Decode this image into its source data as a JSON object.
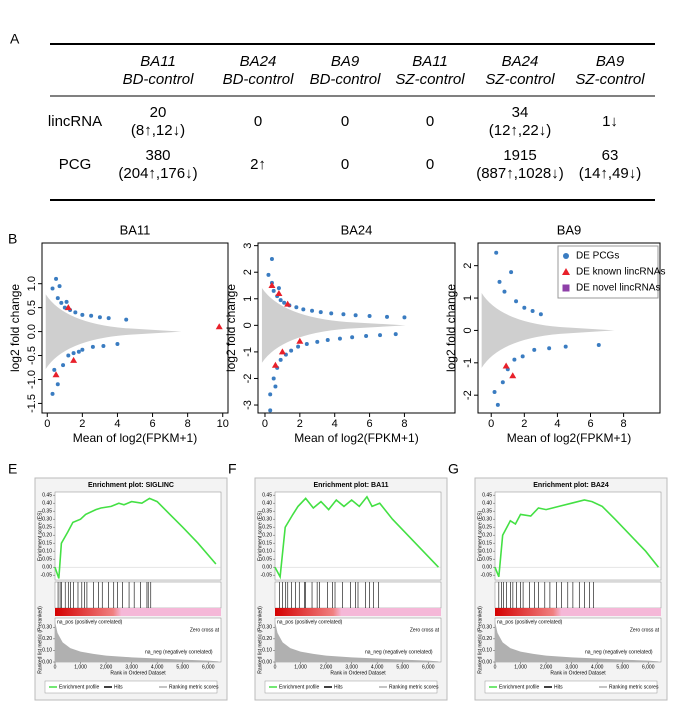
{
  "panel_labels": [
    "A",
    "B",
    "E",
    "F",
    "G"
  ],
  "table": {
    "columns": [
      [
        "BA11",
        "BD-control"
      ],
      [
        "BA24",
        "BD-control"
      ],
      [
        "BA9",
        "BD-control"
      ],
      [
        "BA11",
        "SZ-control"
      ],
      [
        "BA24",
        "SZ-control"
      ],
      [
        "BA9",
        "SZ-control"
      ]
    ],
    "rows": [
      {
        "label": "lincRNA",
        "cells": [
          [
            "20",
            "(8↑,12↓)"
          ],
          [
            "0"
          ],
          [
            "0"
          ],
          [
            "0"
          ],
          [
            "34",
            "(12↑,22↓)"
          ],
          [
            "1↓"
          ]
        ]
      },
      {
        "label": "PCG",
        "cells": [
          [
            "380",
            "(204↑,176↓)"
          ],
          [
            "2↑"
          ],
          [
            "0"
          ],
          [
            "0"
          ],
          [
            "1915",
            "(887↑,1028↓)"
          ],
          [
            "63",
            "(14↑,49↓)"
          ]
        ]
      }
    ]
  },
  "chart_data": [
    {
      "type": "scatter",
      "title": "BA11",
      "xlabel": "Mean of log2(FPKM+1)",
      "ylabel": "log2 fold change",
      "xlim": [
        -0.3,
        10.3
      ],
      "ylim": [
        -1.7,
        1.85
      ],
      "xticks": [
        0,
        2,
        4,
        6,
        8,
        10
      ],
      "yticks": [
        -1.5,
        {
          "value": -1,
          "label": "-1.0"
        },
        -0.5,
        {
          "value": 0,
          "label": "0.0"
        },
        0.5,
        {
          "value": 1,
          "label": "1.0"
        }
      ],
      "series": [
        {
          "color": "#3a7cc1",
          "marker": "circle",
          "x": [
            0.3,
            0.5,
            0.6,
            0.8,
            1.0,
            1.3,
            1.6,
            2.0,
            2.5,
            3.0,
            3.5,
            0.4,
            0.6,
            0.9,
            1.2,
            1.5,
            2.0,
            2.6,
            3.2,
            4.0,
            0.3,
            0.7,
            1.1,
            1.8,
            4.5
          ],
          "values": [
            0.9,
            1.1,
            0.7,
            0.6,
            0.5,
            0.45,
            0.4,
            0.35,
            0.33,
            0.3,
            0.28,
            -0.8,
            -1.1,
            -0.7,
            -0.5,
            -0.45,
            -0.38,
            -0.32,
            -0.3,
            -0.26,
            -1.3,
            0.95,
            0.62,
            -0.42,
            0.25
          ]
        },
        {
          "color": "#e8202a",
          "marker": "triangle",
          "x": [
            1.2,
            0.5,
            1.5,
            9.8
          ],
          "values": [
            0.5,
            -0.9,
            -0.6,
            0.1
          ]
        }
      ]
    },
    {
      "type": "scatter",
      "title": "BA24",
      "xlabel": "Mean of log2(FPKM+1)",
      "ylabel": "log2 fold change",
      "xlim": [
        -0.4,
        10.9
      ],
      "ylim": [
        -3.3,
        3.1
      ],
      "xticks": [
        0,
        2,
        4,
        6,
        8
      ],
      "yticks": [
        -3,
        -2,
        -1,
        0,
        1,
        2,
        3
      ],
      "series": [
        {
          "color": "#3a7cc1",
          "marker": "circle",
          "x": [
            0.2,
            0.4,
            0.5,
            0.7,
            0.9,
            1.1,
            1.4,
            1.8,
            2.2,
            2.7,
            3.2,
            3.8,
            4.5,
            5.2,
            6.0,
            7.0,
            8.0,
            0.3,
            0.5,
            0.7,
            0.9,
            1.2,
            1.5,
            1.9,
            2.4,
            3.0,
            3.6,
            4.3,
            5.0,
            5.8,
            6.6,
            7.5,
            0.4,
            0.8,
            0.3,
            0.6
          ],
          "values": [
            1.9,
            1.6,
            1.3,
            1.1,
            0.95,
            0.85,
            0.75,
            0.68,
            0.6,
            0.55,
            0.5,
            0.45,
            0.42,
            0.38,
            0.35,
            0.32,
            0.3,
            -2.6,
            -2.0,
            -1.6,
            -1.3,
            -1.1,
            -0.95,
            -0.8,
            -0.7,
            -0.62,
            -0.55,
            -0.5,
            -0.45,
            -0.4,
            -0.37,
            -0.33,
            2.5,
            1.4,
            -3.2,
            -2.3
          ]
        },
        {
          "color": "#e8202a",
          "marker": "triangle",
          "x": [
            0.4,
            0.8,
            1.3,
            0.6,
            1.0,
            2.0
          ],
          "values": [
            1.5,
            1.2,
            0.8,
            -1.5,
            -1.0,
            -0.6
          ]
        }
      ]
    },
    {
      "type": "scatter",
      "title": "BA9",
      "xlabel": "Mean of log2(FPKM+1)",
      "ylabel": "log2 fold change",
      "xlim": [
        -0.8,
        10.2
      ],
      "ylim": [
        -2.55,
        2.7
      ],
      "xticks": [
        0,
        2,
        4,
        6,
        8
      ],
      "yticks": [
        -2,
        -1,
        0,
        1,
        2
      ],
      "legend": "upper right",
      "series": [
        {
          "name": "DE PCGs",
          "color": "#3a7cc1",
          "marker": "circle",
          "x": [
            0.3,
            0.5,
            0.8,
            1.2,
            1.5,
            2.0,
            2.5,
            3.0,
            0.4,
            0.7,
            1.0,
            1.4,
            1.9,
            2.6,
            3.5,
            4.5,
            6.5,
            0.2
          ],
          "values": [
            2.4,
            1.5,
            1.2,
            1.8,
            0.9,
            0.7,
            0.6,
            0.5,
            -2.3,
            -1.6,
            -1.2,
            -0.9,
            -0.8,
            -0.6,
            -0.55,
            -0.5,
            -0.45,
            -1.9
          ]
        },
        {
          "name": "DE known lincRNAs",
          "color": "#e8202a",
          "marker": "triangle",
          "x": [
            0.9,
            1.3
          ],
          "values": [
            -1.1,
            -1.4
          ]
        },
        {
          "name": "DE novel lincRNAs",
          "color": "#8e3fa8",
          "marker": "square",
          "x": [],
          "values": []
        }
      ]
    },
    {
      "type": "gsea",
      "title": "Enrichment plot: SIGLINC",
      "ylabel": "Enrichment score (ES)",
      "ylabel2": "Ranked list metric (Preranked)",
      "xlabel": "Rank in Ordered Dataset",
      "pos_label": "na_pos (positively correlated)",
      "neg_label": "na_neg (negatively correlated)",
      "zero_label": "Zero cross at",
      "legend_items": [
        "Enrichment profile",
        "Hits",
        "Ranking metric scores"
      ],
      "color": "#44e044",
      "xlim": [
        0,
        6500
      ],
      "ylim": [
        -0.08,
        0.47
      ],
      "xticks": [
        0,
        {
          "value": 1000,
          "label": "1,000"
        },
        {
          "value": 2000,
          "label": "2,000"
        },
        {
          "value": 3000,
          "label": "3,000"
        },
        {
          "value": 4000,
          "label": "4,000"
        },
        {
          "value": 5000,
          "label": "5,000"
        },
        {
          "value": 6000,
          "label": "6,000"
        }
      ],
      "yticks": [
        {
          "value": 0.45,
          "label": "0.45"
        },
        {
          "value": 0.4,
          "label": "0.40"
        },
        0.35,
        {
          "value": 0.3,
          "label": "0.30"
        },
        0.25,
        {
          "value": 0.2,
          "label": "0.20"
        },
        0.15,
        {
          "value": 0.1,
          "label": "0.10"
        },
        0.05,
        {
          "value": 0,
          "label": "0.00"
        },
        -0.05
      ],
      "x": [
        0,
        150,
        250,
        500,
        700,
        1000,
        1200,
        1600,
        1800,
        2200,
        2500,
        2700,
        3000,
        3400,
        3700,
        4000,
        4500,
        5000,
        5600,
        6300
      ],
      "values": [
        0,
        -0.07,
        0.15,
        0.22,
        0.28,
        0.3,
        0.33,
        0.36,
        0.37,
        0.38,
        0.4,
        0.39,
        0.41,
        0.4,
        0.43,
        0.41,
        0.33,
        0.25,
        0.15,
        0.02
      ],
      "hits": [
        120,
        200,
        260,
        400,
        520,
        600,
        720,
        900,
        1050,
        1150,
        1250,
        1500,
        1700,
        1850,
        2100,
        2300,
        2450,
        2650,
        2900,
        3100,
        3350,
        3600,
        3650,
        3750
      ],
      "metric_ylim": [
        0,
        0.38
      ],
      "metric_yticks": [
        {
          "value": 0,
          "label": "0.00"
        },
        {
          "value": 0.1,
          "label": "0.10"
        },
        {
          "value": 0.2,
          "label": "0.20"
        },
        {
          "value": 0.3,
          "label": "0.30"
        }
      ],
      "metric_x": [
        0,
        100,
        300,
        600,
        1000,
        1500,
        2000,
        3000,
        4000,
        5000,
        6000,
        6400
      ],
      "metric_values": [
        0.35,
        0.25,
        0.17,
        0.12,
        0.09,
        0.07,
        0.055,
        0.04,
        0.03,
        0.02,
        0.012,
        0.005
      ]
    },
    {
      "type": "gsea",
      "title": "Enrichment plot: BA11",
      "ylabel": "Enrichment score (ES)",
      "ylabel2": "Ranked list metric (Preranked)",
      "xlabel": "Rank in Ordered Dataset",
      "pos_label": "na_pos (positively correlated)",
      "neg_label": "na_neg (negatively correlated)",
      "zero_label": "Zero cross at",
      "legend_items": [
        "Enrichment profile",
        "Hits",
        "Ranking metric scores"
      ],
      "color": "#44e044",
      "xlim": [
        0,
        6500
      ],
      "ylim": [
        -0.08,
        0.47
      ],
      "xticks": [
        0,
        {
          "value": 1000,
          "label": "1,000"
        },
        {
          "value": 2000,
          "label": "2,000"
        },
        {
          "value": 3000,
          "label": "3,000"
        },
        {
          "value": 4000,
          "label": "4,000"
        },
        {
          "value": 5000,
          "label": "5,000"
        },
        {
          "value": 6000,
          "label": "6,000"
        }
      ],
      "yticks": [
        {
          "value": 0.45,
          "label": "0.45"
        },
        {
          "value": 0.4,
          "label": "0.40"
        },
        0.35,
        {
          "value": 0.3,
          "label": "0.30"
        },
        0.25,
        {
          "value": 0.2,
          "label": "0.20"
        },
        0.15,
        {
          "value": 0.1,
          "label": "0.10"
        },
        0.05,
        {
          "value": 0,
          "label": "0.00"
        },
        -0.05
      ],
      "x": [
        0,
        200,
        400,
        700,
        900,
        1200,
        1500,
        1800,
        2100,
        2400,
        2700,
        3000,
        3300,
        3600,
        3800,
        4100,
        4600,
        5200,
        5800,
        6400
      ],
      "values": [
        0,
        -0.06,
        0.25,
        0.33,
        0.38,
        0.43,
        0.37,
        0.41,
        0.36,
        0.42,
        0.38,
        0.42,
        0.38,
        0.44,
        0.38,
        0.4,
        0.3,
        0.2,
        0.1,
        0
      ],
      "hits": [
        180,
        300,
        420,
        500,
        650,
        800,
        950,
        1150,
        1200,
        1450,
        1650,
        1750,
        2050,
        2250,
        2350,
        2650,
        2950,
        3150,
        3250,
        3550,
        3700,
        3850,
        4050
      ],
      "metric_ylim": [
        0,
        0.38
      ],
      "metric_yticks": [
        {
          "value": 0,
          "label": "0.00"
        },
        {
          "value": 0.1,
          "label": "0.10"
        },
        {
          "value": 0.2,
          "label": "0.20"
        },
        {
          "value": 0.3,
          "label": "0.30"
        }
      ],
      "metric_x": [
        0,
        100,
        300,
        600,
        1000,
        1500,
        2000,
        3000,
        4000,
        5000,
        6000,
        6400
      ],
      "metric_values": [
        0.35,
        0.25,
        0.17,
        0.12,
        0.09,
        0.07,
        0.055,
        0.04,
        0.03,
        0.02,
        0.012,
        0.005
      ]
    },
    {
      "type": "gsea",
      "title": "Enrichment plot: BA24",
      "ylabel": "Enrichment score (ES)",
      "ylabel2": "Ranked list metric (Preranked)",
      "xlabel": "Rank in Ordered Dataset",
      "pos_label": "na_pos (positively correlated)",
      "neg_label": "na_neg (negatively correlated)",
      "zero_label": "Zero cross at",
      "legend_items": [
        "Enrichment profile",
        "Hits",
        "Ranking metric scores"
      ],
      "color": "#44e044",
      "xlim": [
        0,
        6500
      ],
      "ylim": [
        -0.08,
        0.47
      ],
      "xticks": [
        0,
        {
          "value": 1000,
          "label": "1,000"
        },
        {
          "value": 2000,
          "label": "2,000"
        },
        {
          "value": 3000,
          "label": "3,000"
        },
        {
          "value": 4000,
          "label": "4,000"
        },
        {
          "value": 5000,
          "label": "5,000"
        },
        {
          "value": 6000,
          "label": "6,000"
        }
      ],
      "yticks": [
        {
          "value": 0.45,
          "label": "0.45"
        },
        {
          "value": 0.4,
          "label": "0.40"
        },
        0.35,
        {
          "value": 0.3,
          "label": "0.30"
        },
        0.25,
        {
          "value": 0.2,
          "label": "0.20"
        },
        0.15,
        {
          "value": 0.1,
          "label": "0.10"
        },
        0.05,
        {
          "value": 0,
          "label": "0.00"
        },
        -0.05
      ],
      "x": [
        0,
        150,
        300,
        600,
        800,
        1000,
        1400,
        1700,
        2000,
        2500,
        3000,
        3500,
        3800,
        4200,
        4700,
        5300,
        5900,
        6400
      ],
      "values": [
        0,
        -0.06,
        0.2,
        0.29,
        0.27,
        0.33,
        0.32,
        0.37,
        0.36,
        0.38,
        0.4,
        0.42,
        0.41,
        0.38,
        0.3,
        0.2,
        0.1,
        0
      ],
      "hits": [
        150,
        250,
        330,
        450,
        600,
        700,
        850,
        1000,
        1100,
        1350,
        1550,
        1700,
        1950,
        2150,
        2400,
        2600,
        2850,
        3050,
        3300,
        3500,
        3700,
        3850
      ],
      "metric_ylim": [
        0,
        0.38
      ],
      "metric_yticks": [
        {
          "value": 0,
          "label": "0.00"
        },
        {
          "value": 0.1,
          "label": "0.10"
        },
        {
          "value": 0.2,
          "label": "0.20"
        },
        {
          "value": 0.3,
          "label": "0.30"
        }
      ],
      "metric_x": [
        0,
        100,
        300,
        600,
        1000,
        1500,
        2000,
        3000,
        4000,
        5000,
        6000,
        6400
      ],
      "metric_values": [
        0.35,
        0.25,
        0.17,
        0.12,
        0.09,
        0.07,
        0.055,
        0.04,
        0.03,
        0.02,
        0.012,
        0.005
      ]
    }
  ]
}
